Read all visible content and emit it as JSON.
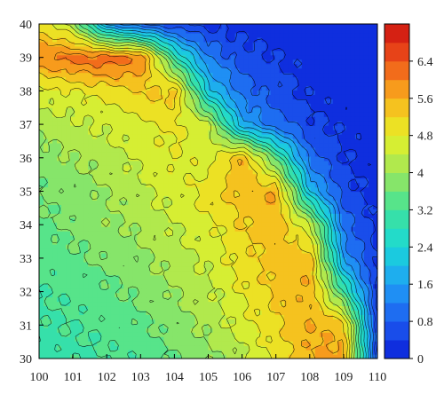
{
  "chart_data": {
    "type": "heatmap",
    "subtype": "filled-contour",
    "title": "",
    "xlabel": "",
    "ylabel": "",
    "xlim": [
      100,
      110
    ],
    "ylim": [
      30,
      40
    ],
    "x_ticks": [
      "100",
      "101",
      "102",
      "103",
      "104",
      "105",
      "106",
      "107",
      "108",
      "109",
      "110"
    ],
    "y_ticks": [
      "30",
      "31",
      "32",
      "33",
      "34",
      "35",
      "36",
      "37",
      "38",
      "39",
      "40"
    ],
    "colorbar": {
      "range": [
        0,
        7.2
      ],
      "levels": 18,
      "tick_values": [
        0,
        0.8,
        1.6,
        2.4,
        3.2,
        4,
        4.8,
        5.6,
        6.4
      ],
      "tick_labels": [
        "0",
        "0.8",
        "1.6",
        "2.4",
        "3.2",
        "4",
        "4.8",
        "5.6",
        "6.4"
      ]
    },
    "colormap": [
      "#0a1fd8",
      "#1e5cf0",
      "#1fa0f5",
      "#19d8d8",
      "#3fe39a",
      "#9ee65a",
      "#e8f026",
      "#f9b21c",
      "#f0541a",
      "#cc1010"
    ],
    "field": {
      "grid_x": [
        100,
        101,
        102,
        103,
        104,
        105,
        106,
        107,
        108,
        109,
        110
      ],
      "grid_y": [
        30,
        31,
        32,
        33,
        34,
        35,
        36,
        37,
        38,
        39,
        40
      ],
      "values": [
        [
          3.0,
          3.1,
          3.2,
          3.3,
          3.6,
          3.9,
          4.3,
          4.9,
          5.6,
          5.8,
          0.5
        ],
        [
          3.1,
          3.2,
          3.3,
          3.5,
          3.8,
          4.1,
          4.6,
          5.1,
          5.6,
          5.4,
          0.4
        ],
        [
          3.2,
          3.3,
          3.5,
          3.7,
          4.0,
          4.3,
          4.8,
          5.3,
          5.6,
          3.2,
          0.3
        ],
        [
          3.3,
          3.5,
          3.7,
          3.9,
          4.2,
          4.5,
          5.0,
          5.4,
          5.5,
          1.5,
          0.3
        ],
        [
          3.5,
          3.7,
          3.9,
          4.1,
          4.4,
          4.7,
          5.2,
          5.5,
          4.5,
          1.0,
          0.3
        ],
        [
          3.6,
          3.8,
          4.0,
          4.3,
          4.6,
          5.0,
          5.4,
          5.6,
          2.0,
          0.6,
          0.2
        ],
        [
          3.8,
          4.0,
          4.2,
          4.5,
          4.8,
          4.6,
          5.6,
          3.5,
          1.0,
          0.4,
          0.2
        ],
        [
          4.1,
          4.3,
          4.5,
          4.7,
          4.9,
          4.5,
          1.7,
          1.0,
          0.5,
          0.3,
          0.2
        ],
        [
          4.6,
          4.8,
          5.0,
          5.2,
          5.4,
          2.2,
          1.0,
          0.6,
          0.3,
          0.2,
          0.1
        ],
        [
          6.0,
          6.2,
          6.3,
          6.1,
          3.0,
          1.2,
          0.6,
          0.4,
          0.2,
          0.1,
          0.1
        ],
        [
          5.0,
          4.2,
          1.5,
          0.8,
          0.5,
          0.3,
          0.2,
          0.2,
          0.1,
          0.1,
          0.1
        ]
      ]
    }
  }
}
